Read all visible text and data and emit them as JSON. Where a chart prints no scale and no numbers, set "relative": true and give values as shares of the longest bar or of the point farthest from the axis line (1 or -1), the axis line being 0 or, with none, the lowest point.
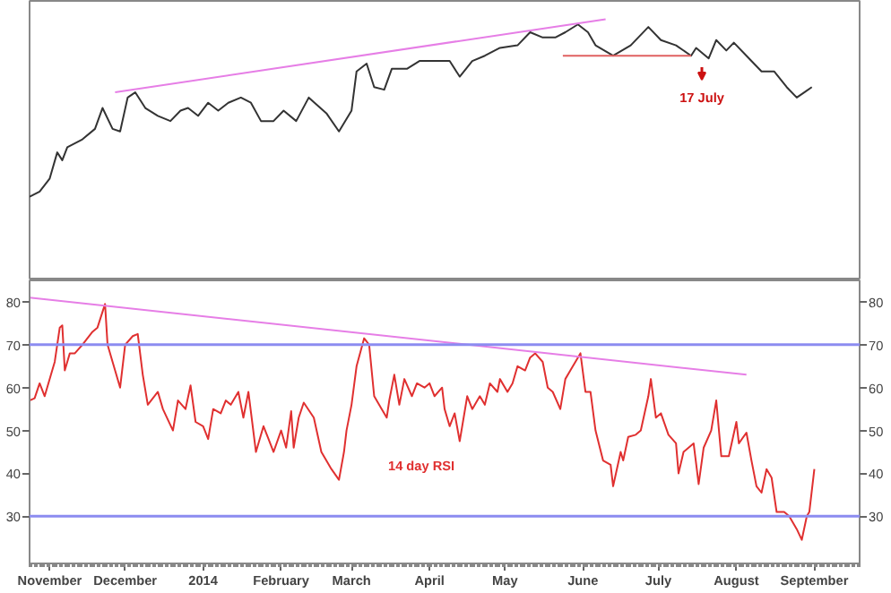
{
  "chart_data": [
    {
      "type": "line",
      "relative": true,
      "xlim": [
        "2013-10-24",
        "2014-09-19"
      ],
      "series": [
        {
          "color": "#333333",
          "x": [
            "2013-10-24",
            "2013-10-28",
            "2013-11-01",
            "2013-11-04",
            "2013-11-06",
            "2013-11-08",
            "2013-11-14",
            "2013-11-19",
            "2013-11-22",
            "2013-11-26",
            "2013-11-29",
            "2013-12-02",
            "2013-12-05",
            "2013-12-09",
            "2013-12-14",
            "2013-12-19",
            "2013-12-23",
            "2013-12-26",
            "2013-12-30",
            "2014-01-03",
            "2014-01-07",
            "2014-01-11",
            "2014-01-16",
            "2014-01-20",
            "2014-01-24",
            "2014-01-29",
            "2014-02-02",
            "2014-02-07",
            "2014-02-12",
            "2014-02-19",
            "2014-02-24",
            "2014-03-01",
            "2014-03-03",
            "2014-03-07",
            "2014-03-10",
            "2014-03-14",
            "2014-03-17",
            "2014-03-23",
            "2014-03-28",
            "2014-04-04",
            "2014-04-09",
            "2014-04-13",
            "2014-04-18",
            "2014-04-23",
            "2014-04-29",
            "2014-05-06",
            "2014-05-11",
            "2014-05-16",
            "2014-05-21",
            "2014-05-25",
            "2014-05-30",
            "2014-06-03",
            "2014-06-06",
            "2014-06-13",
            "2014-06-20",
            "2014-06-27",
            "2014-07-02",
            "2014-07-08",
            "2014-07-14",
            "2014-07-16",
            "2014-07-21",
            "2014-07-24",
            "2014-07-28",
            "2014-07-31",
            "2014-08-05",
            "2014-08-11",
            "2014-08-16",
            "2014-08-21",
            "2014-08-25",
            "2014-08-28",
            "2014-08-31"
          ],
          "values": [
            0.32,
            0.34,
            0.39,
            0.49,
            0.46,
            0.51,
            0.54,
            0.58,
            0.66,
            0.58,
            0.57,
            0.7,
            0.72,
            0.66,
            0.63,
            0.61,
            0.65,
            0.66,
            0.63,
            0.68,
            0.65,
            0.68,
            0.7,
            0.68,
            0.61,
            0.61,
            0.65,
            0.61,
            0.7,
            0.64,
            0.57,
            0.65,
            0.8,
            0.83,
            0.74,
            0.73,
            0.81,
            0.81,
            0.84,
            0.84,
            0.84,
            0.78,
            0.84,
            0.86,
            0.89,
            0.9,
            0.95,
            0.93,
            0.93,
            0.95,
            0.98,
            0.95,
            0.9,
            0.86,
            0.9,
            0.97,
            0.92,
            0.9,
            0.86,
            0.89,
            0.85,
            0.92,
            0.88,
            0.91,
            0.86,
            0.8,
            0.8,
            0.74,
            0.7,
            0.72,
            0.74
          ]
        },
        {
          "type": "line",
          "color": "#e67ee6",
          "x": [
            "2013-11-27",
            "2014-06-10"
          ],
          "values": [
            0.72,
            1.0
          ]
        },
        {
          "type": "line",
          "color": "#e06060",
          "x": [
            "2014-05-24",
            "2014-07-14"
          ],
          "values": [
            0.86,
            0.86
          ]
        }
      ],
      "annotations": [
        "17 July"
      ]
    },
    {
      "type": "line",
      "xlim": [
        "2013-10-24",
        "2014-09-19"
      ],
      "xticks": [
        {
          "value": "2013-11-01",
          "label": "November"
        },
        {
          "value": "2013-12-01",
          "label": "December"
        },
        {
          "value": "2014-01-01",
          "label": "2014"
        },
        {
          "value": "2014-02-01",
          "label": "February"
        },
        {
          "value": "2014-03-01",
          "label": "March"
        },
        {
          "value": "2014-04-01",
          "label": "April"
        },
        {
          "value": "2014-05-01",
          "label": "May"
        },
        {
          "value": "2014-06-01",
          "label": "June"
        },
        {
          "value": "2014-07-01",
          "label": "July"
        },
        {
          "value": "2014-08-01",
          "label": "August"
        },
        {
          "value": "2014-09-01",
          "label": "September"
        }
      ],
      "ylim": [
        19,
        85
      ],
      "yticks": [
        30,
        40,
        50,
        60,
        70,
        80
      ],
      "y2lim": [
        19,
        85
      ],
      "y2ticks": [
        30,
        40,
        50,
        60,
        70,
        80
      ],
      "series": [
        {
          "name": "14 day RSI",
          "color": "#e03030",
          "x": [
            "2013-10-24",
            "2013-10-26",
            "2013-10-28",
            "2013-10-30",
            "2013-11-02",
            "2013-11-03",
            "2013-11-05",
            "2013-11-06",
            "2013-11-07",
            "2013-11-09",
            "2013-11-11",
            "2013-11-14",
            "2013-11-18",
            "2013-11-20",
            "2013-11-23",
            "2013-11-24",
            "2013-11-26",
            "2013-11-29",
            "2013-12-01",
            "2013-12-04",
            "2013-12-06",
            "2013-12-08",
            "2013-12-10",
            "2013-12-14",
            "2013-12-16",
            "2013-12-20",
            "2013-12-22",
            "2013-12-25",
            "2013-12-27",
            "2013-12-29",
            "2014-01-01",
            "2014-01-03",
            "2014-01-05",
            "2014-01-08",
            "2014-01-10",
            "2014-01-12",
            "2014-01-15",
            "2014-01-17",
            "2014-01-19",
            "2014-01-22",
            "2014-01-25",
            "2014-01-27",
            "2014-01-29",
            "2014-02-01",
            "2014-02-03",
            "2014-02-05",
            "2014-02-06",
            "2014-02-08",
            "2014-02-10",
            "2014-02-14",
            "2014-02-17",
            "2014-02-21",
            "2014-02-24",
            "2014-02-26",
            "2014-02-27",
            "2014-03-01",
            "2014-03-03",
            "2014-03-06",
            "2014-03-08",
            "2014-03-10",
            "2014-03-13",
            "2014-03-15",
            "2014-03-16",
            "2014-03-18",
            "2014-03-20",
            "2014-03-22",
            "2014-03-25",
            "2014-03-27",
            "2014-03-30",
            "2014-04-01",
            "2014-04-03",
            "2014-04-06",
            "2014-04-07",
            "2014-04-09",
            "2014-04-11",
            "2014-04-13",
            "2014-04-16",
            "2014-04-18",
            "2014-04-21",
            "2014-04-23",
            "2014-04-25",
            "2014-04-28",
            "2014-04-29",
            "2014-05-02",
            "2014-05-04",
            "2014-05-06",
            "2014-05-09",
            "2014-05-11",
            "2014-05-13",
            "2014-05-16",
            "2014-05-18",
            "2014-05-20",
            "2014-05-23",
            "2014-05-25",
            "2014-05-27",
            "2014-05-31",
            "2014-06-02",
            "2014-06-04",
            "2014-06-06",
            "2014-06-09",
            "2014-06-12",
            "2014-06-13",
            "2014-06-16",
            "2014-06-17",
            "2014-06-19",
            "2014-06-22",
            "2014-06-24",
            "2014-06-27",
            "2014-06-28",
            "2014-06-30",
            "2014-07-02",
            "2014-07-05",
            "2014-07-08",
            "2014-07-09",
            "2014-07-11",
            "2014-07-15",
            "2014-07-17",
            "2014-07-19",
            "2014-07-22",
            "2014-07-24",
            "2014-07-26",
            "2014-07-29",
            "2014-08-01",
            "2014-08-02",
            "2014-08-05",
            "2014-08-07",
            "2014-08-09",
            "2014-08-11",
            "2014-08-13",
            "2014-08-15",
            "2014-08-17",
            "2014-08-20",
            "2014-08-22",
            "2014-08-25",
            "2014-08-27",
            "2014-08-29",
            "2014-08-30",
            "2014-09-01"
          ],
          "values": [
            57,
            57.5,
            61,
            58,
            64,
            66,
            74,
            74.5,
            64,
            68,
            68,
            70,
            73,
            74,
            79.5,
            70,
            66,
            60,
            70,
            72,
            72.5,
            63,
            56,
            59,
            55,
            50,
            57,
            55,
            60.5,
            52,
            51,
            48,
            55,
            54,
            57,
            56,
            59,
            53,
            59,
            45,
            51,
            48,
            45,
            50,
            46,
            54.5,
            46,
            53,
            56.5,
            53,
            45,
            41,
            38.5,
            45,
            50,
            56,
            65,
            71.5,
            70,
            58,
            55,
            53,
            57,
            63,
            56,
            62,
            58,
            61,
            60,
            61,
            58,
            60,
            55,
            51,
            54,
            47.5,
            58,
            55,
            58,
            56,
            61,
            59,
            62,
            59,
            61,
            65,
            64,
            67,
            68,
            66,
            60,
            59,
            55,
            62,
            64,
            68,
            59,
            59,
            50,
            43,
            42,
            37,
            45,
            43,
            48.5,
            49,
            50,
            58,
            62,
            53,
            54,
            49,
            47,
            40,
            45,
            47,
            37.5,
            46,
            50,
            57,
            44,
            44,
            52,
            47,
            49.5,
            43,
            37,
            35.5,
            41,
            39,
            31,
            31,
            30,
            27,
            24.5,
            30,
            31,
            41
          ]
        },
        {
          "type": "line",
          "color": "#e67ee6",
          "x": [
            "2013-10-24",
            "2014-08-05"
          ],
          "values": [
            81,
            63
          ]
        }
      ],
      "ref_lines": [
        {
          "axis": "y",
          "value": 70,
          "color": "#8c8cf0"
        },
        {
          "axis": "y",
          "value": 30,
          "color": "#8c8cf0"
        }
      ]
    }
  ]
}
